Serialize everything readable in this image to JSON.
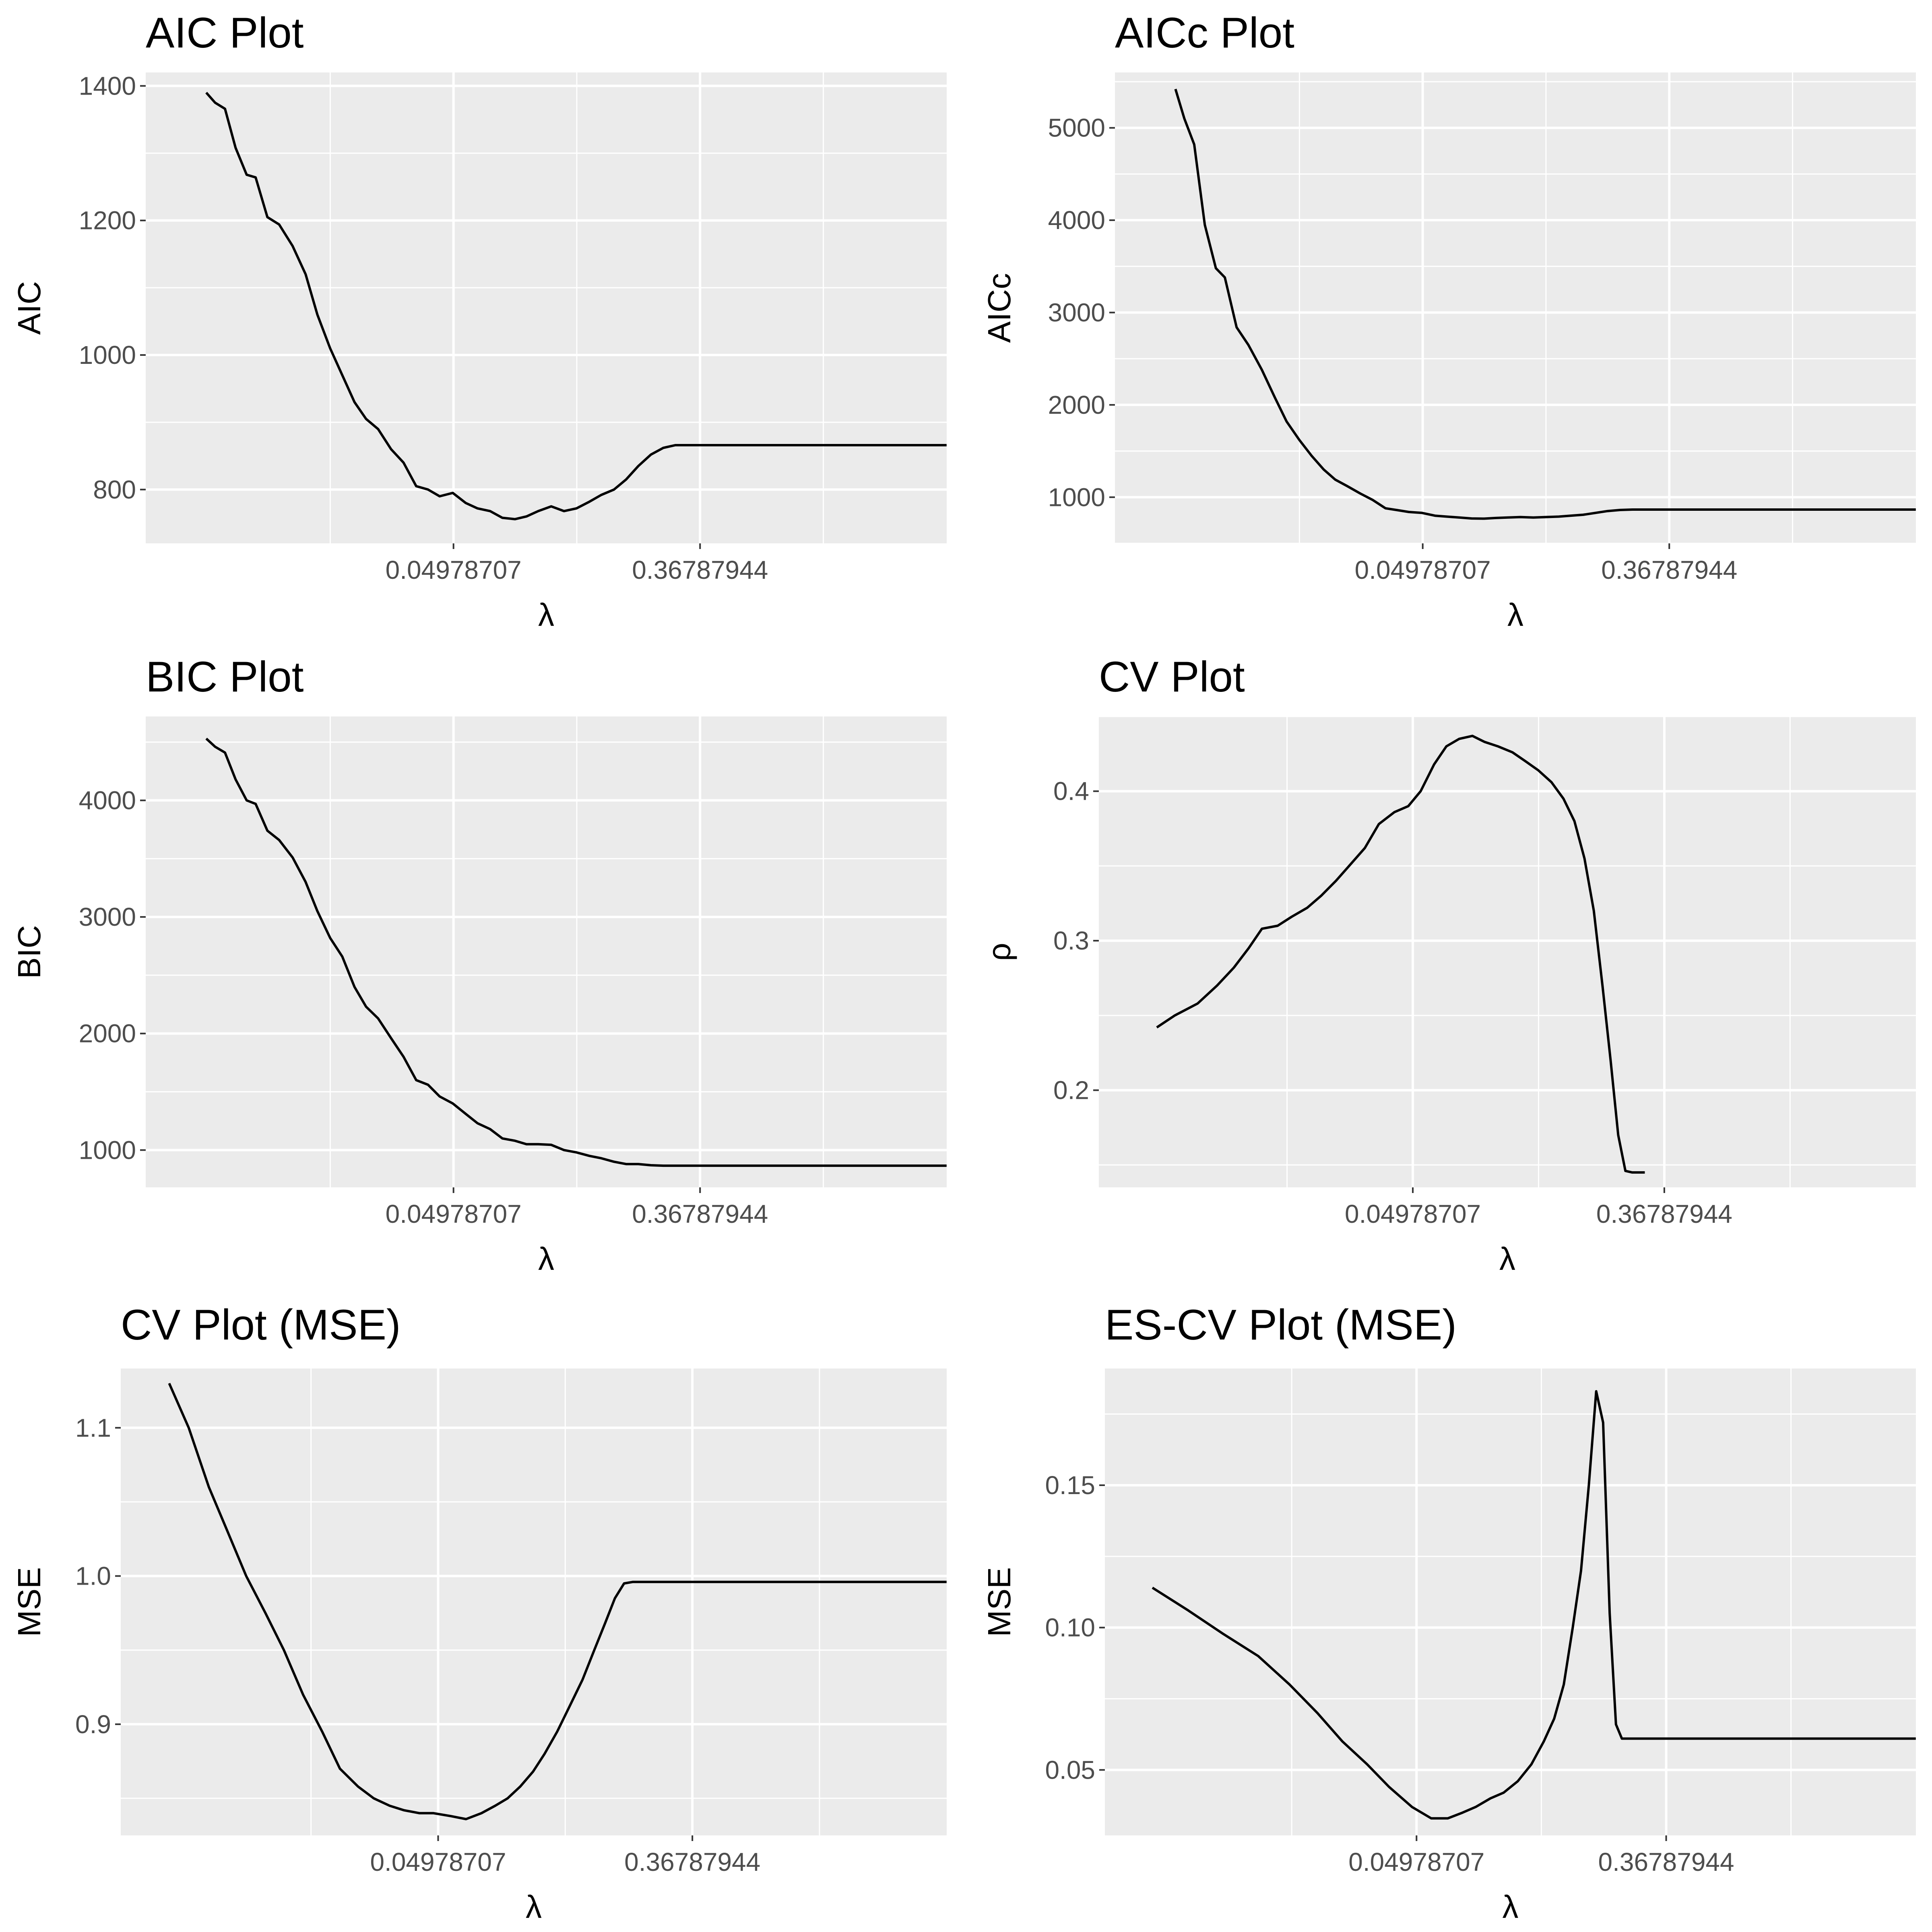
{
  "chart_data": [
    {
      "type": "line",
      "title": "AIC Plot",
      "xlabel": "λ",
      "ylabel": "AIC",
      "x_scale": "log",
      "x_ticks": [
        0.04978707,
        0.36787944
      ],
      "x_tick_labels": [
        "0.04978707",
        "0.36787944"
      ],
      "xlim": [
        0.0041,
        2.72
      ],
      "ylim": [
        720,
        1420
      ],
      "y_ticks": [
        800,
        1000,
        1200,
        1400
      ],
      "y_tick_labels": [
        "800",
        "1000",
        "1200",
        "1400"
      ],
      "grid": true,
      "series": [
        {
          "x": [
            0.0067,
            0.0072,
            0.0078,
            0.0085,
            0.0093,
            0.01,
            0.011,
            0.0121,
            0.0135,
            0.015,
            0.0165,
            0.0183,
            0.0202,
            0.0223,
            0.0245,
            0.027,
            0.03,
            0.0332,
            0.0368,
            0.0405,
            0.0445,
            0.0495,
            0.055,
            0.0605,
            0.067,
            0.074,
            0.082,
            0.09,
            0.099,
            0.11,
            0.122,
            0.135,
            0.15,
            0.165,
            0.183,
            0.202,
            0.223,
            0.247,
            0.273,
            0.301,
            0.333,
            0.368,
            0.41,
            0.5,
            1.0,
            2.7183
          ],
          "y": [
            1390,
            1375,
            1366,
            1308,
            1268,
            1264,
            1205,
            1194,
            1162,
            1120,
            1060,
            1010,
            970,
            930,
            905,
            890,
            860,
            840,
            805,
            800,
            790,
            795,
            780,
            772,
            768,
            758,
            756,
            760,
            768,
            775,
            768,
            772,
            782,
            792,
            800,
            815,
            835,
            852,
            862,
            866,
            866,
            866,
            866,
            866,
            866,
            866
          ]
        }
      ]
    },
    {
      "type": "line",
      "title": "AICc Plot",
      "xlabel": "λ",
      "ylabel": "AICc",
      "x_scale": "log",
      "x_ticks": [
        0.04978707,
        0.36787944
      ],
      "x_tick_labels": [
        "0.04978707",
        "0.36787944"
      ],
      "xlim": [
        0.0041,
        2.72
      ],
      "ylim": [
        500,
        5600
      ],
      "y_ticks": [
        1000,
        2000,
        3000,
        4000,
        5000
      ],
      "y_tick_labels": [
        "1000",
        "2000",
        "3000",
        "4000",
        "5000"
      ],
      "grid": true,
      "series": [
        {
          "x": [
            0.0067,
            0.0072,
            0.0078,
            0.0085,
            0.0093,
            0.01,
            0.011,
            0.0121,
            0.0135,
            0.015,
            0.0165,
            0.0183,
            0.0202,
            0.0223,
            0.0245,
            0.027,
            0.03,
            0.0332,
            0.0368,
            0.0405,
            0.0445,
            0.0495,
            0.055,
            0.0605,
            0.067,
            0.074,
            0.082,
            0.09,
            0.099,
            0.11,
            0.122,
            0.135,
            0.15,
            0.165,
            0.183,
            0.202,
            0.223,
            0.247,
            0.273,
            0.301,
            0.333,
            0.368,
            0.41,
            0.5,
            1.0,
            2.7183
          ],
          "y": [
            5420,
            5100,
            4820,
            3950,
            3480,
            3380,
            2840,
            2650,
            2380,
            2080,
            1820,
            1620,
            1450,
            1300,
            1190,
            1120,
            1040,
            970,
            880,
            860,
            840,
            830,
            800,
            790,
            780,
            770,
            768,
            775,
            780,
            785,
            780,
            785,
            790,
            800,
            810,
            830,
            850,
            862,
            866,
            866,
            866,
            866,
            866,
            866,
            866,
            866
          ]
        }
      ]
    },
    {
      "type": "line",
      "title": "BIC Plot",
      "xlabel": "λ",
      "ylabel": "BIC",
      "x_scale": "log",
      "x_ticks": [
        0.04978707,
        0.36787944
      ],
      "x_tick_labels": [
        "0.04978707",
        "0.36787944"
      ],
      "xlim": [
        0.0041,
        2.72
      ],
      "ylim": [
        680,
        4720
      ],
      "y_ticks": [
        1000,
        2000,
        3000,
        4000
      ],
      "y_tick_labels": [
        "1000",
        "2000",
        "3000",
        "4000"
      ],
      "grid": true,
      "series": [
        {
          "x": [
            0.0067,
            0.0072,
            0.0078,
            0.0085,
            0.0093,
            0.01,
            0.011,
            0.0121,
            0.0135,
            0.015,
            0.0165,
            0.0183,
            0.0202,
            0.0223,
            0.0245,
            0.027,
            0.03,
            0.0332,
            0.0368,
            0.0405,
            0.0445,
            0.0495,
            0.055,
            0.0605,
            0.067,
            0.074,
            0.082,
            0.09,
            0.099,
            0.11,
            0.122,
            0.135,
            0.15,
            0.165,
            0.183,
            0.202,
            0.223,
            0.247,
            0.273,
            0.301,
            0.333,
            0.368,
            0.41,
            0.5,
            1.0,
            2.7183
          ],
          "y": [
            4530,
            4460,
            4410,
            4180,
            4000,
            3970,
            3740,
            3660,
            3510,
            3300,
            3050,
            2820,
            2660,
            2400,
            2230,
            2130,
            1960,
            1800,
            1600,
            1560,
            1460,
            1400,
            1310,
            1230,
            1180,
            1100,
            1080,
            1050,
            1050,
            1045,
            1000,
            980,
            950,
            930,
            900,
            880,
            880,
            870,
            866,
            866,
            866,
            866,
            866,
            866,
            866,
            866
          ]
        }
      ]
    },
    {
      "type": "line",
      "title": "CV Plot",
      "xlabel": "λ",
      "ylabel": "ρ",
      "x_scale": "log",
      "x_ticks": [
        0.04978707,
        0.36787944
      ],
      "x_tick_labels": [
        "0.04978707",
        "0.36787944"
      ],
      "xlim": [
        0.0041,
        2.72
      ],
      "ylim": [
        0.135,
        0.45
      ],
      "y_ticks": [
        0.2,
        0.3,
        0.4
      ],
      "y_tick_labels": [
        "0.2",
        "0.3",
        "0.4"
      ],
      "grid": true,
      "series": [
        {
          "x": [
            0.0065,
            0.0075,
            0.009,
            0.0105,
            0.012,
            0.0135,
            0.015,
            0.017,
            0.019,
            0.0215,
            0.024,
            0.027,
            0.03,
            0.034,
            0.038,
            0.043,
            0.048,
            0.053,
            0.059,
            0.065,
            0.072,
            0.08,
            0.088,
            0.098,
            0.11,
            0.122,
            0.135,
            0.15,
            0.165,
            0.18,
            0.195,
            0.21,
            0.225,
            0.24,
            0.255,
            0.27,
            0.285,
            0.3,
            0.315
          ],
          "y": [
            0.242,
            0.25,
            0.258,
            0.27,
            0.282,
            0.295,
            0.308,
            0.31,
            0.316,
            0.322,
            0.33,
            0.34,
            0.35,
            0.362,
            0.378,
            0.386,
            0.39,
            0.4,
            0.418,
            0.43,
            0.435,
            0.437,
            0.433,
            0.43,
            0.426,
            0.42,
            0.414,
            0.406,
            0.395,
            0.38,
            0.355,
            0.32,
            0.27,
            0.22,
            0.17,
            0.146,
            0.145,
            0.145,
            0.145
          ]
        }
      ]
    },
    {
      "type": "line",
      "title": "CV Plot (MSE)",
      "xlabel": "λ",
      "ylabel": "MSE",
      "x_scale": "log",
      "x_ticks": [
        0.04978707,
        0.36787944
      ],
      "x_tick_labels": [
        "0.04978707",
        "0.36787944"
      ],
      "xlim": [
        0.0041,
        2.72
      ],
      "ylim": [
        0.825,
        1.14
      ],
      "y_ticks": [
        0.9,
        1.0,
        1.1
      ],
      "y_tick_labels": [
        "0.9",
        "1.0",
        "1.1"
      ],
      "grid": true,
      "series": [
        {
          "x": [
            0.006,
            0.007,
            0.0082,
            0.0095,
            0.011,
            0.0128,
            0.0148,
            0.0172,
            0.02,
            0.023,
            0.0265,
            0.03,
            0.034,
            0.038,
            0.043,
            0.048,
            0.055,
            0.062,
            0.07,
            0.078,
            0.086,
            0.095,
            0.105,
            0.115,
            0.127,
            0.14,
            0.155,
            0.17,
            0.185,
            0.2,
            0.215,
            0.23,
            0.25,
            0.27,
            0.29,
            0.315,
            0.368,
            0.5,
            1.0,
            2.7183
          ],
          "y": [
            1.13,
            1.1,
            1.06,
            1.03,
            1.0,
            0.975,
            0.95,
            0.92,
            0.895,
            0.87,
            0.858,
            0.85,
            0.845,
            0.842,
            0.84,
            0.84,
            0.838,
            0.836,
            0.84,
            0.845,
            0.85,
            0.858,
            0.868,
            0.88,
            0.895,
            0.912,
            0.93,
            0.95,
            0.968,
            0.985,
            0.995,
            0.996,
            0.996,
            0.996,
            0.996,
            0.996,
            0.996,
            0.996,
            0.996,
            0.996
          ]
        }
      ]
    },
    {
      "type": "line",
      "title": "ES-CV Plot (MSE)",
      "xlabel": "λ",
      "ylabel": "MSE",
      "x_scale": "log",
      "x_ticks": [
        0.04978707,
        0.36787944
      ],
      "x_tick_labels": [
        "0.04978707",
        "0.36787944"
      ],
      "xlim": [
        0.0041,
        2.72
      ],
      "ylim": [
        0.027,
        0.191
      ],
      "y_ticks": [
        0.05,
        0.1,
        0.15
      ],
      "y_tick_labels": [
        "0.05",
        "0.10",
        "0.15"
      ],
      "grid": true,
      "series": [
        {
          "x": [
            0.006,
            0.008,
            0.0105,
            0.014,
            0.018,
            0.0225,
            0.0275,
            0.0335,
            0.04,
            0.048,
            0.056,
            0.064,
            0.072,
            0.08,
            0.09,
            0.1,
            0.112,
            0.125,
            0.138,
            0.15,
            0.162,
            0.174,
            0.186,
            0.198,
            0.21,
            0.222,
            0.234,
            0.246,
            0.258,
            0.27,
            0.282,
            0.294,
            0.315,
            0.368,
            0.5,
            1.0,
            2.7183
          ],
          "y": [
            0.114,
            0.106,
            0.098,
            0.09,
            0.08,
            0.07,
            0.06,
            0.052,
            0.044,
            0.037,
            0.033,
            0.033,
            0.035,
            0.037,
            0.04,
            0.042,
            0.046,
            0.052,
            0.06,
            0.068,
            0.08,
            0.1,
            0.12,
            0.15,
            0.183,
            0.172,
            0.105,
            0.066,
            0.061,
            0.061,
            0.061,
            0.061,
            0.061,
            0.061,
            0.061,
            0.061,
            0.061
          ]
        }
      ]
    }
  ]
}
